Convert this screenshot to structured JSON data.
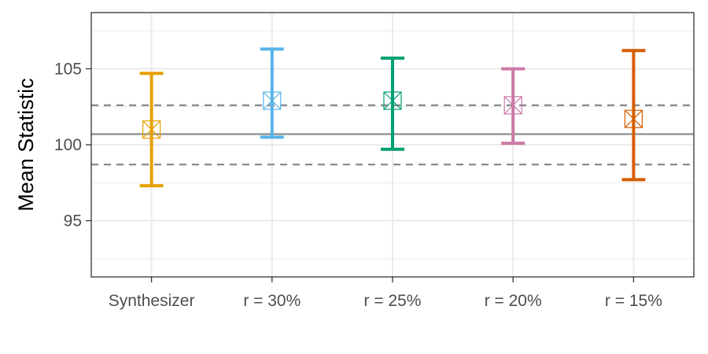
{
  "chart_data": {
    "type": "errorbar",
    "title": "",
    "xlabel": "",
    "ylabel": "Mean Statistic",
    "categories": [
      "Synthesizer",
      "r = 30%",
      "r = 25%",
      "r = 20%",
      "r = 15%"
    ],
    "series": [
      {
        "mean": 101.0,
        "lower": 97.3,
        "upper": 104.7,
        "color": "#E69F00"
      },
      {
        "mean": 102.9,
        "lower": 100.5,
        "upper": 106.3,
        "color": "#56B4E9"
      },
      {
        "mean": 102.9,
        "lower": 99.7,
        "upper": 105.7,
        "color": "#009E73"
      },
      {
        "mean": 102.6,
        "lower": 100.1,
        "upper": 105.0,
        "color": "#CC79A7"
      },
      {
        "mean": 101.7,
        "lower": 97.7,
        "upper": 106.2,
        "color": "#D55E00"
      }
    ],
    "reference_lines": [
      {
        "y": 100.7,
        "style": "solid",
        "color": "#8c8c8c"
      },
      {
        "y": 102.6,
        "style": "dashed",
        "color": "#8c8c8c"
      },
      {
        "y": 98.7,
        "style": "dashed",
        "color": "#8c8c8c"
      }
    ],
    "yticks": [
      95,
      100,
      105
    ],
    "ytick_labels": [
      "95",
      "100",
      "105"
    ],
    "ylim": [
      91.3,
      108.7
    ],
    "grid": true,
    "legend": "none"
  }
}
